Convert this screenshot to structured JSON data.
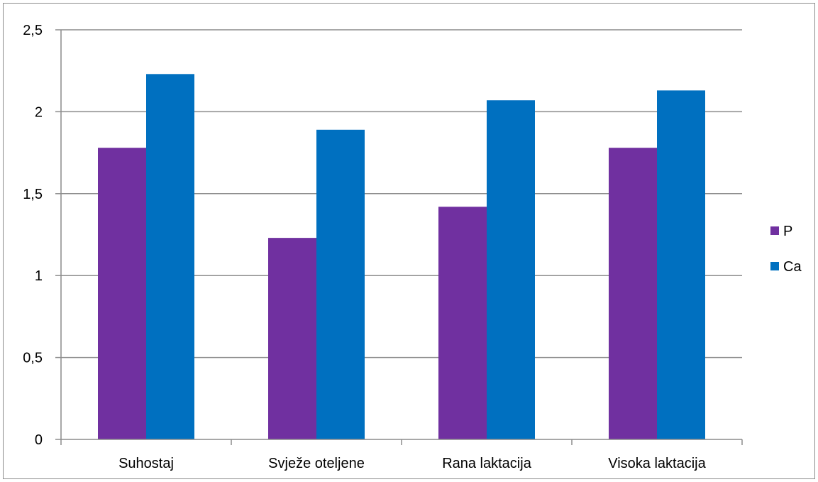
{
  "chart_data": {
    "type": "bar",
    "categories": [
      "Suhostaj",
      "Svježe oteljene",
      "Rana laktacija",
      "Visoka laktacija"
    ],
    "series": [
      {
        "name": "P",
        "color": "#7030A0",
        "values": [
          1.78,
          1.23,
          1.42,
          1.78
        ]
      },
      {
        "name": "Ca",
        "color": "#0070C0",
        "values": [
          2.23,
          1.89,
          2.07,
          2.13
        ]
      }
    ],
    "ylim": [
      0,
      2.5
    ],
    "yticks": [
      "0",
      "0,5",
      "1",
      "1,5",
      "2",
      "2,5"
    ],
    "ytick_values": [
      0,
      0.5,
      1,
      1.5,
      2,
      2.5
    ],
    "grid": true,
    "legend_position": "right",
    "title": "",
    "xlabel": "",
    "ylabel": ""
  }
}
